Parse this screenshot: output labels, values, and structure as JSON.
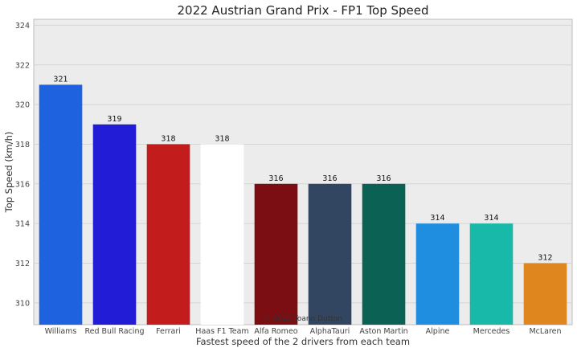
{
  "chart_data": {
    "type": "bar",
    "title": "2022 Austrian Grand Prix - FP1 Top Speed",
    "xlabel": "Fastest speed of the 2 drivers from each team",
    "ylabel": "Top Speed (km/h)",
    "ylim": [
      308.9,
      324.3
    ],
    "yticks": [
      310,
      312,
      314,
      316,
      318,
      320,
      322,
      324
    ],
    "grid": true,
    "categories": [
      "Williams",
      "Red Bull Racing",
      "Ferrari",
      "Haas F1 Team",
      "Alfa Romeo",
      "AlphaTauri",
      "Aston Martin",
      "Alpine",
      "Mercedes",
      "McLaren"
    ],
    "values": [
      321,
      319,
      318,
      318,
      316,
      316,
      316,
      314,
      314,
      312
    ],
    "colors": [
      "#1e62e0",
      "#231cd6",
      "#c21c1c",
      "#ffffff",
      "#7b0e13",
      "#334661",
      "#0c6155",
      "#1f8ee0",
      "#19b9a9",
      "#e0861e"
    ],
    "value_labels": [
      "321",
      "319",
      "318",
      "318",
      "316",
      "316",
      "316",
      "314",
      "314",
      "312"
    ],
    "annotation": "© 2022 Yoann Dutton"
  }
}
